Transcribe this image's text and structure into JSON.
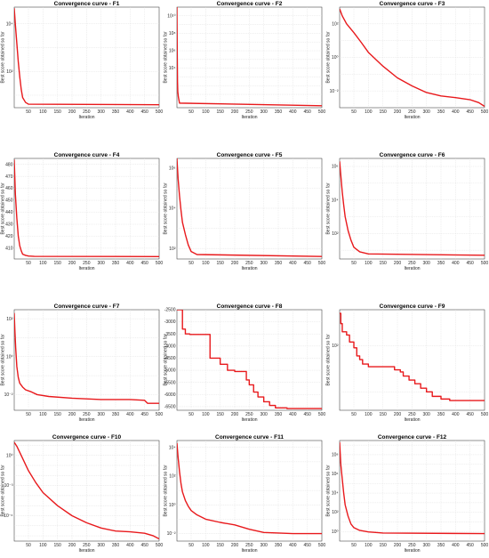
{
  "chart_data": [
    {
      "type": "line",
      "title": "Convergence curve - F1",
      "xlabel": "Iteration",
      "ylabel": "Best score obtained so far",
      "xlim": [
        1,
        500
      ],
      "xticks": [
        50,
        100,
        150,
        200,
        250,
        300,
        350,
        400,
        450,
        500
      ],
      "yscale": "log",
      "ylim": [
        3,
        50000.0
      ],
      "yticks": [
        {
          "v": 10000,
          "label": "10⁴"
        },
        {
          "v": 100,
          "label": "10²"
        }
      ],
      "grid": true,
      "color": "#e8191c",
      "x": [
        1,
        5,
        10,
        15,
        20,
        25,
        30,
        40,
        50,
        500
      ],
      "y": [
        45000,
        9000,
        1500,
        250,
        60,
        18,
        8,
        5,
        4.2,
        4
      ]
    },
    {
      "type": "line",
      "title": "Convergence curve - F2",
      "xlabel": "Iteration",
      "ylabel": "Best score obtained so far",
      "xlim": [
        1,
        500
      ],
      "xticks": [
        50,
        100,
        150,
        200,
        250,
        300,
        350,
        400,
        450,
        500
      ],
      "yscale": "log",
      "ylim": [
        0.3,
        100000000000.0
      ],
      "yticks": [
        {
          "v": 10000000000.0,
          "label": "10¹⁰"
        },
        {
          "v": 100000000.0,
          "label": "10⁸"
        },
        {
          "v": 1000000.0,
          "label": "10⁶"
        },
        {
          "v": 10000.0,
          "label": "10⁴"
        }
      ],
      "grid": true,
      "color": "#e8191c",
      "x": [
        1,
        2,
        3,
        4,
        6,
        10,
        500
      ],
      "y": [
        100000000000.0,
        1000000.0,
        300,
        20,
        5,
        1,
        0.5
      ]
    },
    {
      "type": "line",
      "title": "Convergence curve - F3",
      "xlabel": "Iteration",
      "ylabel": "Best score obtained so far",
      "xlim": [
        1,
        500
      ],
      "xticks": [
        50,
        100,
        150,
        200,
        250,
        300,
        350,
        400,
        450,
        500
      ],
      "yscale": "log",
      "ylim": [
        0.001,
        1000.0
      ],
      "yticks": [
        {
          "v": 100,
          "label": "10²"
        },
        {
          "v": 1,
          "label": "10⁰"
        },
        {
          "v": 0.01,
          "label": "10⁻²"
        }
      ],
      "grid": true,
      "color": "#e8191c",
      "x": [
        1,
        10,
        25,
        50,
        75,
        100,
        150,
        200,
        250,
        300,
        350,
        400,
        450,
        480,
        500
      ],
      "y": [
        800,
        300,
        100,
        30,
        8,
        2,
        0.3,
        0.06,
        0.02,
        0.008,
        0.005,
        0.004,
        0.003,
        0.002,
        0.0012
      ]
    },
    {
      "type": "line",
      "title": "Convergence curve - F4",
      "xlabel": "Iteration",
      "ylabel": "Best score obtained so far",
      "xlim": [
        1,
        500
      ],
      "xticks": [
        50,
        100,
        150,
        200,
        250,
        300,
        350,
        400,
        450,
        500
      ],
      "yscale": "linear",
      "ylim": [
        401,
        485
      ],
      "yticks": [
        {
          "v": 480,
          "label": "480"
        },
        {
          "v": 470,
          "label": "470"
        },
        {
          "v": 460,
          "label": "460"
        },
        {
          "v": 450,
          "label": "450"
        },
        {
          "v": 440,
          "label": "440"
        },
        {
          "v": 430,
          "label": "430"
        },
        {
          "v": 420,
          "label": "420"
        },
        {
          "v": 410,
          "label": "410"
        }
      ],
      "grid": true,
      "color": "#e8191c",
      "x": [
        1,
        5,
        10,
        15,
        20,
        25,
        30,
        40,
        50,
        70,
        500
      ],
      "y": [
        484,
        455,
        435,
        420,
        412,
        408,
        405,
        404,
        403.5,
        403.2,
        403
      ]
    },
    {
      "type": "line",
      "title": "Convergence curve - F5",
      "xlabel": "Iteration",
      "ylabel": "Best score obtained so far",
      "xlim": [
        1,
        500
      ],
      "xticks": [
        50,
        100,
        150,
        200,
        250,
        300,
        350,
        400,
        450,
        500
      ],
      "yscale": "log",
      "ylim": [
        30,
        3000000.0
      ],
      "yticks": [
        {
          "v": 1000000.0,
          "label": "10⁶"
        },
        {
          "v": 10000.0,
          "label": "10⁴"
        },
        {
          "v": 100,
          "label": "10²"
        }
      ],
      "grid": true,
      "color": "#e8191c",
      "x": [
        1,
        5,
        10,
        15,
        20,
        30,
        40,
        50,
        70,
        500
      ],
      "y": [
        3000000.0,
        300000,
        40000,
        8000,
        2000,
        500,
        150,
        70,
        50,
        40
      ]
    },
    {
      "type": "line",
      "title": "Convergence curve - F6",
      "xlabel": "Iteration",
      "ylabel": "Best score obtained so far",
      "xlim": [
        1,
        500
      ],
      "xticks": [
        50,
        100,
        150,
        200,
        250,
        300,
        350,
        400,
        450,
        500
      ],
      "yscale": "log",
      "ylim": [
        3,
        3000000.0
      ],
      "yticks": [
        {
          "v": 1000000.0,
          "label": "10⁶"
        },
        {
          "v": 10000.0,
          "label": "10⁴"
        },
        {
          "v": 100,
          "label": "10²"
        }
      ],
      "grid": true,
      "color": "#e8191c",
      "x": [
        1,
        5,
        10,
        15,
        20,
        30,
        40,
        50,
        70,
        100,
        500
      ],
      "y": [
        2000000.0,
        300000,
        30000,
        5000,
        1000,
        150,
        40,
        15,
        8,
        6,
        5
      ]
    },
    {
      "type": "line",
      "title": "Convergence curve - F7",
      "xlabel": "Iteration",
      "ylabel": "Best score obtained so far",
      "xlim": [
        1,
        500
      ],
      "xticks": [
        50,
        100,
        150,
        200,
        250,
        300,
        350,
        400,
        450,
        500
      ],
      "yscale": "log",
      "ylim": [
        0.0015,
        300
      ],
      "yticks": [
        {
          "v": 100,
          "label": "10²"
        },
        {
          "v": 1,
          "label": "10⁰"
        },
        {
          "v": 0.01,
          "label": "10⁻²"
        }
      ],
      "grid": true,
      "color": "#e8191c",
      "x": [
        1,
        3,
        6,
        10,
        15,
        20,
        30,
        40,
        60,
        80,
        120,
        200,
        300,
        400,
        450,
        460,
        500
      ],
      "y": [
        200,
        30,
        3,
        0.3,
        0.08,
        0.04,
        0.025,
        0.018,
        0.014,
        0.01,
        0.008,
        0.0065,
        0.0055,
        0.0055,
        0.005,
        0.0035,
        0.0035
      ]
    },
    {
      "type": "line",
      "title": "Convergence curve - F8",
      "xlabel": "Iteration",
      "ylabel": "Best score obtained so far",
      "xlim": [
        1,
        500
      ],
      "xticks": [
        50,
        100,
        150,
        200,
        250,
        300,
        350,
        400,
        450,
        500
      ],
      "yscale": "linear",
      "ylim": [
        -6650,
        -2500
      ],
      "yticks": [
        {
          "v": -2500,
          "label": "-2500"
        },
        {
          "v": -3000,
          "label": "-3000"
        },
        {
          "v": -3500,
          "label": "-3500"
        },
        {
          "v": -4000,
          "label": "-4000"
        },
        {
          "v": -4500,
          "label": "-4500"
        },
        {
          "v": -5000,
          "label": "-5000"
        },
        {
          "v": -5500,
          "label": "-5500"
        },
        {
          "v": -6000,
          "label": "-6000"
        },
        {
          "v": -6500,
          "label": "-6500"
        }
      ],
      "grid": true,
      "color": "#e8191c",
      "x": [
        1,
        20,
        20,
        30,
        30,
        45,
        45,
        115,
        115,
        150,
        150,
        175,
        175,
        200,
        200,
        240,
        240,
        250,
        250,
        265,
        265,
        280,
        280,
        300,
        300,
        320,
        320,
        340,
        340,
        380,
        380,
        500
      ],
      "y": [
        -2500,
        -2500,
        -3300,
        -3300,
        -3500,
        -3500,
        -3520,
        -3520,
        -4500,
        -4500,
        -4750,
        -4750,
        -5000,
        -5000,
        -5050,
        -5050,
        -5400,
        -5400,
        -5600,
        -5600,
        -5900,
        -5900,
        -6100,
        -6100,
        -6300,
        -6300,
        -6450,
        -6450,
        -6550,
        -6550,
        -6580,
        -6580
      ]
    },
    {
      "type": "line",
      "title": "Convergence curve - F9",
      "xlabel": "Iteration",
      "ylabel": "Best score obtained so far",
      "xlim": [
        1,
        500
      ],
      "xticks": [
        50,
        100,
        150,
        200,
        250,
        300,
        350,
        400,
        450,
        500
      ],
      "yscale": "log",
      "ylim": [
        4,
        600
      ],
      "yticks": [
        {
          "v": 100,
          "label": "10²"
        }
      ],
      "grid": true,
      "color": "#e8191c",
      "x": [
        1,
        5,
        5,
        10,
        10,
        25,
        25,
        35,
        35,
        50,
        50,
        60,
        60,
        70,
        70,
        80,
        80,
        100,
        100,
        150,
        150,
        190,
        190,
        210,
        210,
        220,
        220,
        240,
        240,
        260,
        260,
        280,
        280,
        300,
        300,
        320,
        320,
        350,
        350,
        380,
        380,
        500
      ],
      "y": [
        500,
        500,
        300,
        300,
        200,
        200,
        170,
        170,
        120,
        120,
        90,
        90,
        60,
        60,
        50,
        50,
        40,
        40,
        35,
        35,
        35,
        35,
        30,
        30,
        27,
        27,
        22,
        22,
        18,
        18,
        15,
        15,
        12,
        12,
        10,
        10,
        8,
        8,
        7,
        7,
        6.5,
        6.5
      ]
    },
    {
      "type": "line",
      "title": "Convergence curve - F10",
      "xlabel": "Iteration",
      "ylabel": "Best score obtained so far",
      "xlim": [
        1,
        500
      ],
      "xticks": [
        50,
        100,
        150,
        200,
        250,
        300,
        350,
        400,
        450,
        500
      ],
      "yscale": "log",
      "ylim": [
        3e-09,
        30
      ],
      "yticks": [
        {
          "v": 1,
          "label": "10⁰"
        },
        {
          "v": 0.001,
          "label": "10⁻³"
        },
        {
          "v": 1e-06,
          "label": "10⁻⁶"
        }
      ],
      "grid": true,
      "color": "#e8191c",
      "x": [
        1,
        10,
        25,
        50,
        75,
        100,
        150,
        200,
        250,
        300,
        350,
        400,
        450,
        480,
        500
      ],
      "y": [
        20,
        8,
        1,
        0.03,
        0.002,
        0.0002,
        1e-05,
        1e-06,
        2e-07,
        6e-08,
        3e-08,
        2.5e-08,
        1.8e-08,
        1e-08,
        5e-09
      ]
    },
    {
      "type": "line",
      "title": "Convergence curve - F11",
      "xlabel": "Iteration",
      "ylabel": "Best score obtained so far",
      "xlim": [
        1,
        500
      ],
      "xticks": [
        50,
        100,
        150,
        200,
        250,
        300,
        350,
        400,
        450,
        500
      ],
      "yscale": "log",
      "ylim": [
        0.003,
        30000.0
      ],
      "yticks": [
        {
          "v": 10000,
          "label": "10⁴"
        },
        {
          "v": 100,
          "label": "10²"
        },
        {
          "v": 1,
          "label": "10⁰"
        },
        {
          "v": 0.01,
          "label": "10⁻²"
        }
      ],
      "grid": true,
      "color": "#e8191c",
      "x": [
        1,
        5,
        10,
        15,
        20,
        30,
        40,
        50,
        70,
        100,
        150,
        200,
        250,
        300,
        400,
        500
      ],
      "y": [
        20000,
        2000,
        200,
        30,
        8,
        2,
        0.8,
        0.4,
        0.2,
        0.1,
        0.06,
        0.04,
        0.02,
        0.012,
        0.01,
        0.01
      ]
    },
    {
      "type": "line",
      "title": "Convergence curve - F12",
      "xlabel": "Iteration",
      "ylabel": "Best score obtained so far",
      "xlim": [
        1,
        500
      ],
      "xticks": [
        50,
        100,
        150,
        200,
        250,
        300,
        350,
        400,
        450,
        500
      ],
      "yscale": "log",
      "ylim": [
        0.1,
        3000000000.0
      ],
      "yticks": [
        {
          "v": 100000000.0,
          "label": "10⁸"
        },
        {
          "v": 1000000.0,
          "label": "10⁶"
        },
        {
          "v": 10000.0,
          "label": "10⁴"
        },
        {
          "v": 100,
          "label": "10²"
        },
        {
          "v": 1,
          "label": "10⁰"
        }
      ],
      "grid": true,
      "color": "#e8191c",
      "x": [
        1,
        5,
        10,
        15,
        20,
        30,
        40,
        50,
        70,
        100,
        150,
        500
      ],
      "y": [
        2000000000.0,
        10000000.0,
        300000,
        10000,
        600,
        40,
        6,
        2.5,
        1.3,
        0.9,
        0.7,
        0.6
      ]
    }
  ]
}
